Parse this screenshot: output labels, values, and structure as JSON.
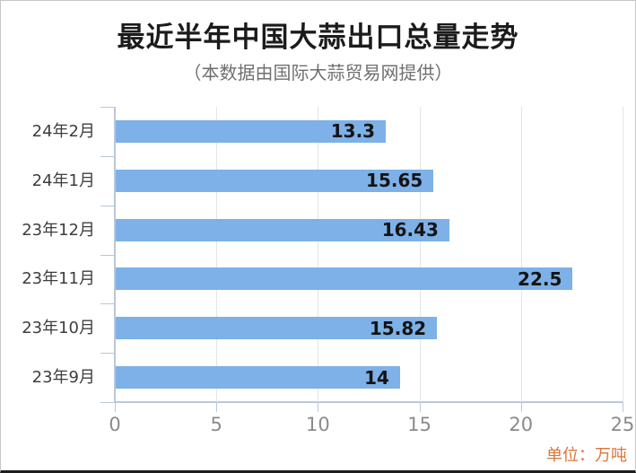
{
  "title": "最近半年中国大蒜出口总量走势",
  "subtitle": "（本数据由国际大蒜贸易网提供）",
  "unit_label": "单位：万吨",
  "colors": {
    "bar": "#7db1e7",
    "axis": "#b7c8da",
    "grid": "#dfe5ea",
    "title_text": "#1b1b1b",
    "subtitle_text": "#6f6f6f",
    "tick_text": "#8b8b8b",
    "category_text": "#3e3e3e",
    "value_text": "#141414",
    "unit_text": "#d9753a"
  },
  "chart_data": {
    "type": "bar",
    "orientation": "horizontal",
    "title": "最近半年中国大蒜出口总量走势",
    "subtitle": "（本数据由国际大蒜贸易网提供）",
    "categories": [
      "24年2月",
      "24年1月",
      "23年12月",
      "23年11月",
      "23年10月",
      "23年9月"
    ],
    "values": [
      13.3,
      15.65,
      16.43,
      22.5,
      15.82,
      14
    ],
    "value_labels": [
      "13.3",
      "15.65",
      "16.43",
      "22.5",
      "15.82",
      "14"
    ],
    "x_ticks": [
      0,
      5,
      10,
      15,
      20,
      25
    ],
    "xlim": [
      0,
      25
    ],
    "xlabel": "",
    "ylabel": "",
    "grid": "vertical-only",
    "legend": "none",
    "unit": "万吨",
    "value_label_position": "inside-end"
  }
}
